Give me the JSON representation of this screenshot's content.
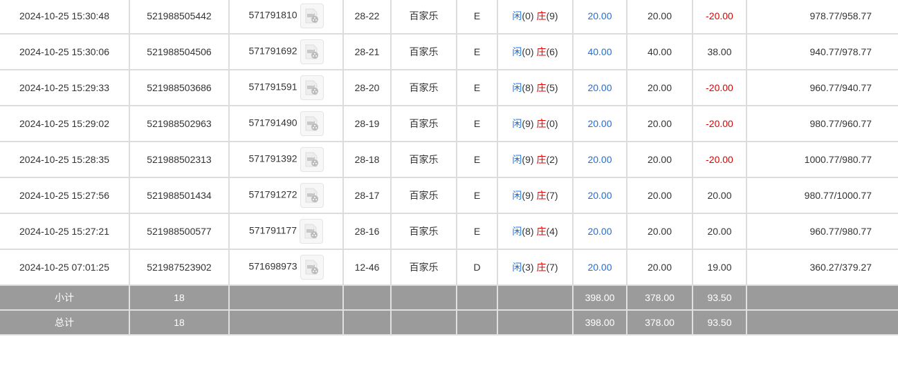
{
  "colors": {
    "player": "#1e6fd9",
    "banker": "#e00000",
    "bet": "#1e6fd9",
    "loss": "#e00000",
    "summary_bg": "#9b9b9b"
  },
  "video_icon": "video-file-icon",
  "rows": [
    {
      "time": "2024-10-25 15:30:48",
      "order": "521988505442",
      "round": "571791810",
      "shoe": "28-22",
      "game": "百家乐",
      "table": "E",
      "player": "闲",
      "player_pts": "(0)",
      "banker": "庄",
      "banker_pts": "(9)",
      "bet": "20.00",
      "valid": "20.00",
      "win": "-20.00",
      "neg": true,
      "balance": "978.77/958.77"
    },
    {
      "time": "2024-10-25 15:30:06",
      "order": "521988504506",
      "round": "571791692",
      "shoe": "28-21",
      "game": "百家乐",
      "table": "E",
      "player": "闲",
      "player_pts": "(0)",
      "banker": "庄",
      "banker_pts": "(6)",
      "bet": "40.00",
      "valid": "40.00",
      "win": "38.00",
      "neg": false,
      "balance": "940.77/978.77"
    },
    {
      "time": "2024-10-25 15:29:33",
      "order": "521988503686",
      "round": "571791591",
      "shoe": "28-20",
      "game": "百家乐",
      "table": "E",
      "player": "闲",
      "player_pts": "(8)",
      "banker": "庄",
      "banker_pts": "(5)",
      "bet": "20.00",
      "valid": "20.00",
      "win": "-20.00",
      "neg": true,
      "balance": "960.77/940.77"
    },
    {
      "time": "2024-10-25 15:29:02",
      "order": "521988502963",
      "round": "571791490",
      "shoe": "28-19",
      "game": "百家乐",
      "table": "E",
      "player": "闲",
      "player_pts": "(9)",
      "banker": "庄",
      "banker_pts": "(0)",
      "bet": "20.00",
      "valid": "20.00",
      "win": "-20.00",
      "neg": true,
      "balance": "980.77/960.77"
    },
    {
      "time": "2024-10-25 15:28:35",
      "order": "521988502313",
      "round": "571791392",
      "shoe": "28-18",
      "game": "百家乐",
      "table": "E",
      "player": "闲",
      "player_pts": "(9)",
      "banker": "庄",
      "banker_pts": "(2)",
      "bet": "20.00",
      "valid": "20.00",
      "win": "-20.00",
      "neg": true,
      "balance": "1000.77/980.77"
    },
    {
      "time": "2024-10-25 15:27:56",
      "order": "521988501434",
      "round": "571791272",
      "shoe": "28-17",
      "game": "百家乐",
      "table": "E",
      "player": "闲",
      "player_pts": "(9)",
      "banker": "庄",
      "banker_pts": "(7)",
      "bet": "20.00",
      "valid": "20.00",
      "win": "20.00",
      "neg": false,
      "balance": "980.77/1000.77"
    },
    {
      "time": "2024-10-25 15:27:21",
      "order": "521988500577",
      "round": "571791177",
      "shoe": "28-16",
      "game": "百家乐",
      "table": "E",
      "player": "闲",
      "player_pts": "(8)",
      "banker": "庄",
      "banker_pts": "(4)",
      "bet": "20.00",
      "valid": "20.00",
      "win": "20.00",
      "neg": false,
      "balance": "960.77/980.77"
    },
    {
      "time": "2024-10-25 07:01:25",
      "order": "521987523902",
      "round": "571698973",
      "shoe": "12-46",
      "game": "百家乐",
      "table": "D",
      "player": "闲",
      "player_pts": "(3)",
      "banker": "庄",
      "banker_pts": "(7)",
      "bet": "20.00",
      "valid": "20.00",
      "win": "19.00",
      "neg": false,
      "balance": "360.27/379.27"
    }
  ],
  "summary": [
    {
      "label": "小计",
      "count": "18",
      "bet": "398.00",
      "valid": "378.00",
      "win": "93.50"
    },
    {
      "label": "总计",
      "count": "18",
      "bet": "398.00",
      "valid": "378.00",
      "win": "93.50"
    }
  ]
}
